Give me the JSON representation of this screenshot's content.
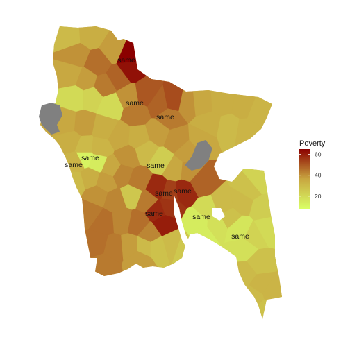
{
  "map": {
    "type": "choropleth",
    "palette": {
      "low": "#d9ff66",
      "mid": "#c8a640",
      "high": "#8b0000",
      "missing": "#808080",
      "border": "#9a8a3a"
    },
    "legend": {
      "title": "Poverty",
      "ticks": [
        {
          "label": "60",
          "value": 60
        },
        {
          "label": "40",
          "value": 40
        },
        {
          "label": "20",
          "value": 20
        }
      ],
      "range": [
        8,
        65
      ]
    },
    "labels": [
      {
        "id": "north-tip",
        "text": "same"
      },
      {
        "id": "north-central",
        "text": "same"
      },
      {
        "id": "mymensingh",
        "text": "same"
      },
      {
        "id": "west-1",
        "text": "same"
      },
      {
        "id": "west-2",
        "text": "same"
      },
      {
        "id": "dhaka-central",
        "text": "same"
      },
      {
        "id": "dhaka-south-1",
        "text": "same"
      },
      {
        "id": "dhaka-south-2",
        "text": "same"
      },
      {
        "id": "barisal",
        "text": "same"
      },
      {
        "id": "chittagong-coast-1",
        "text": "same"
      },
      {
        "id": "chittagong-coast-2",
        "text": "same"
      }
    ]
  }
}
